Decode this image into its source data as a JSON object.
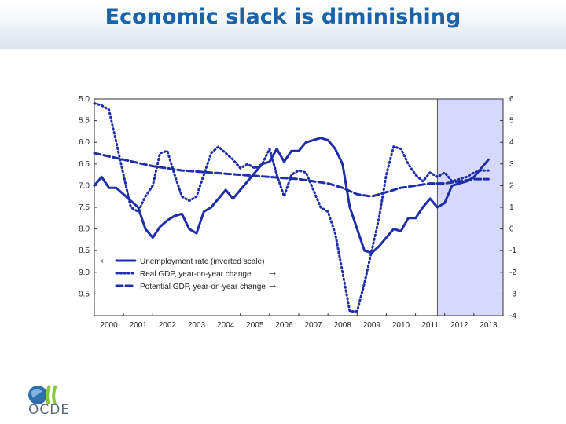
{
  "slide": {
    "title": "Economic slack is diminishing"
  },
  "logo": {
    "text": "OCDE",
    "icon": "globe-icon"
  },
  "colors": {
    "line": "#1e2da8",
    "forecast_band": "#d6d8ff",
    "title": "#1b63a8"
  },
  "chart_data": {
    "type": "line",
    "title": "",
    "x_ticks": [
      "2000",
      "2001",
      "2002",
      "2003",
      "2004",
      "2005",
      "2006",
      "2007",
      "2008",
      "2009",
      "2010",
      "2011",
      "2012",
      "2013"
    ],
    "x_range": [
      2000,
      2014
    ],
    "left_axis": {
      "ticks": [
        "5.0",
        "5.5",
        "6.0",
        "6.5",
        "7.0",
        "7.5",
        "8.0",
        "8.5",
        "9.0",
        "9.5"
      ],
      "range": [
        5.0,
        10.0
      ],
      "inverted": true
    },
    "right_axis": {
      "ticks": [
        "6",
        "5",
        "4",
        "3",
        "2",
        "1",
        "0",
        "-1",
        "-2",
        "-3",
        "-4"
      ],
      "range": [
        -4,
        6
      ]
    },
    "forecast_start": 2011.75,
    "legend": [
      {
        "label": "Unemployment rate (inverted scale)",
        "style": "solid",
        "arrow": "←"
      },
      {
        "label": "Real GDP, year-on-year change",
        "style": "dotted",
        "arrow": "→"
      },
      {
        "label": "Potential GDP, year-on-year change",
        "style": "dashed",
        "arrow": "→"
      }
    ],
    "legend_position": "bottom-left",
    "series": [
      {
        "name": "Unemployment rate (inverted scale)",
        "axis": "left",
        "style": "solid",
        "x": [
          2000,
          2000.25,
          2000.5,
          2000.75,
          2001,
          2001.25,
          2001.5,
          2001.75,
          2002,
          2002.25,
          2002.5,
          2002.75,
          2003,
          2003.25,
          2003.5,
          2003.75,
          2004,
          2004.25,
          2004.5,
          2004.75,
          2005,
          2005.25,
          2005.5,
          2005.75,
          2006,
          2006.25,
          2006.5,
          2006.75,
          2007,
          2007.25,
          2007.5,
          2007.75,
          2008,
          2008.25,
          2008.5,
          2008.75,
          2009,
          2009.25,
          2009.5,
          2009.75,
          2010,
          2010.25,
          2010.5,
          2010.75,
          2011,
          2011.25,
          2011.5,
          2011.75,
          2012,
          2012.25,
          2012.5,
          2012.75,
          2013,
          2013.25,
          2013.5
        ],
        "y": [
          7.0,
          6.8,
          7.05,
          7.05,
          7.2,
          7.35,
          7.5,
          8.0,
          8.2,
          7.95,
          7.8,
          7.7,
          7.65,
          8.0,
          8.1,
          7.6,
          7.5,
          7.3,
          7.1,
          7.3,
          7.1,
          6.9,
          6.7,
          6.5,
          6.45,
          6.15,
          6.45,
          6.2,
          6.2,
          6.0,
          5.95,
          5.9,
          5.95,
          6.15,
          6.5,
          7.5,
          8.0,
          8.5,
          8.55,
          8.4,
          8.2,
          8.0,
          8.05,
          7.75,
          7.75,
          7.5,
          7.3,
          7.5,
          7.4,
          7.0,
          6.95,
          6.9,
          6.8,
          6.6,
          6.4
        ]
      },
      {
        "name": "Real GDP, year-on-year change",
        "axis": "right",
        "style": "dotted",
        "x": [
          2000,
          2000.25,
          2000.5,
          2000.75,
          2001,
          2001.25,
          2001.5,
          2001.75,
          2002,
          2002.25,
          2002.5,
          2002.75,
          2003,
          2003.25,
          2003.5,
          2003.75,
          2004,
          2004.25,
          2004.5,
          2004.75,
          2005,
          2005.25,
          2005.5,
          2005.75,
          2006,
          2006.25,
          2006.5,
          2006.75,
          2007,
          2007.25,
          2007.5,
          2007.75,
          2008,
          2008.25,
          2008.5,
          2008.75,
          2009,
          2009.25,
          2009.5,
          2009.75,
          2010,
          2010.25,
          2010.5,
          2010.75,
          2011,
          2011.25,
          2011.5,
          2011.75,
          2012,
          2012.25,
          2012.5,
          2012.75,
          2013,
          2013.25,
          2013.5
        ],
        "y": [
          5.8,
          5.7,
          5.5,
          4.0,
          2.5,
          1.0,
          0.8,
          1.5,
          2.0,
          3.5,
          3.6,
          2.5,
          1.5,
          1.3,
          1.5,
          2.5,
          3.5,
          3.8,
          3.5,
          3.2,
          2.8,
          3.0,
          2.8,
          3.0,
          3.7,
          2.5,
          1.5,
          2.5,
          2.7,
          2.6,
          1.8,
          1.0,
          0.8,
          -0.2,
          -2.0,
          -3.8,
          -3.8,
          -2.5,
          -1.0,
          0.5,
          2.5,
          3.8,
          3.7,
          3.0,
          2.5,
          2.2,
          2.6,
          2.4,
          2.6,
          2.2,
          2.3,
          2.4,
          2.6,
          2.7,
          2.7
        ]
      },
      {
        "name": "Potential GDP, year-on-year change",
        "axis": "right",
        "style": "dashed",
        "x": [
          2000,
          2001,
          2002,
          2003,
          2004,
          2005,
          2006,
          2007,
          2008,
          2008.5,
          2009,
          2009.5,
          2010,
          2010.5,
          2011,
          2011.5,
          2012,
          2012.5,
          2013,
          2013.5
        ],
        "y": [
          3.5,
          3.2,
          2.9,
          2.7,
          2.6,
          2.5,
          2.4,
          2.3,
          2.1,
          1.9,
          1.6,
          1.5,
          1.7,
          1.9,
          2.0,
          2.1,
          2.1,
          2.2,
          2.3,
          2.3
        ]
      }
    ]
  }
}
